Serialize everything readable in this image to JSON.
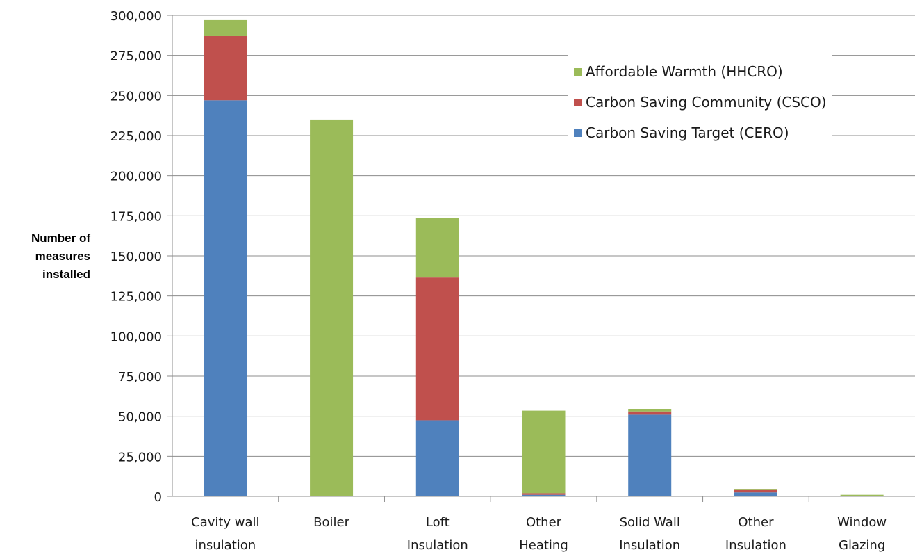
{
  "chart_data": {
    "type": "bar",
    "stacked": true,
    "ylabel": [
      "Number of",
      "measures",
      "installed"
    ],
    "xlabel": "",
    "ylim": [
      0,
      300000
    ],
    "yticks": [
      "0",
      "25,000",
      "50,000",
      "75,000",
      "100,000",
      "125,000",
      "150,000",
      "175,000",
      "200,000",
      "225,000",
      "250,000",
      "275,000",
      "300,000"
    ],
    "categories": [
      [
        "Cavity wall",
        "insulation"
      ],
      [
        "Boiler"
      ],
      [
        "Loft",
        "Insulation"
      ],
      [
        "Other",
        "Heating"
      ],
      [
        "Solid Wall",
        "Insulation"
      ],
      [
        "Other",
        "Insulation"
      ],
      [
        "Window",
        "Glazing"
      ]
    ],
    "series": [
      {
        "name": "Carbon Saving Target (CERO)",
        "color": "#4f81bd",
        "values": [
          247000,
          0,
          47500,
          1000,
          51000,
          2500,
          0
        ]
      },
      {
        "name": "Carbon Saving Community (CSCO)",
        "color": "#c0504d",
        "values": [
          40000,
          0,
          89000,
          1000,
          2000,
          1500,
          0
        ]
      },
      {
        "name": "Affordable Warmth (HHCRO)",
        "color": "#9bbb59",
        "values": [
          10000,
          235000,
          37000,
          51500,
          1500,
          500,
          1000
        ]
      }
    ],
    "legend_order": [
      2,
      1,
      0
    ],
    "grid": true,
    "legend_position": "top-right"
  }
}
